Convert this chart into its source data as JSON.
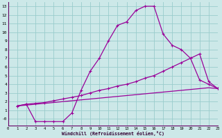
{
  "xlabel": "Windchill (Refroidissement éolien,°C)",
  "bg_color": "#cce8e8",
  "grid_color": "#99cccc",
  "line_color": "#990099",
  "xlim": [
    0,
    23
  ],
  "ylim": [
    -0.8,
    13.5
  ],
  "xticks": [
    0,
    1,
    2,
    3,
    4,
    5,
    6,
    7,
    8,
    9,
    10,
    11,
    12,
    13,
    14,
    15,
    16,
    17,
    18,
    19,
    20,
    21,
    22,
    23
  ],
  "yticks": [
    0,
    1,
    2,
    3,
    4,
    5,
    6,
    7,
    8,
    9,
    10,
    11,
    12,
    13
  ],
  "ytick_labels": [
    "-0",
    "1",
    "2",
    "3",
    "4",
    "5",
    "6",
    "7",
    "8",
    "9",
    "10",
    "11",
    "12",
    "13"
  ],
  "curve1_x": [
    1,
    2,
    3,
    4,
    5,
    6,
    7,
    8,
    9,
    10,
    11,
    12,
    13,
    14,
    15,
    16,
    17,
    18,
    19,
    20,
    21,
    22,
    23
  ],
  "curve1_y": [
    1.5,
    1.7,
    -0.3,
    -0.3,
    -0.3,
    -0.3,
    0.7,
    3.3,
    5.5,
    7.0,
    9.0,
    10.8,
    11.2,
    12.5,
    13.0,
    13.0,
    9.8,
    8.5,
    8.0,
    7.0,
    4.5,
    4.0,
    3.5
  ],
  "curve2_x": [
    1,
    2,
    3,
    4,
    5,
    6,
    7,
    8,
    9,
    10,
    11,
    12,
    13,
    14,
    15,
    16,
    17,
    18,
    19,
    20,
    21,
    22,
    23
  ],
  "curve2_y": [
    1.5,
    1.7,
    1.8,
    1.9,
    2.1,
    2.3,
    2.5,
    2.7,
    3.0,
    3.3,
    3.5,
    3.8,
    4.0,
    4.3,
    4.7,
    5.0,
    5.5,
    6.0,
    6.5,
    7.0,
    7.5,
    4.3,
    3.5
  ],
  "curve3_x": [
    1,
    2,
    3,
    4,
    5,
    6,
    7,
    8,
    9,
    10,
    11,
    12,
    13,
    14,
    15,
    16,
    17,
    18,
    19,
    20,
    21,
    22,
    23
  ],
  "curve3_y": [
    1.5,
    1.6,
    1.7,
    1.8,
    1.9,
    2.0,
    2.1,
    2.2,
    2.3,
    2.4,
    2.5,
    2.6,
    2.7,
    2.8,
    2.9,
    3.0,
    3.1,
    3.2,
    3.3,
    3.4,
    3.5,
    3.6,
    3.5
  ]
}
